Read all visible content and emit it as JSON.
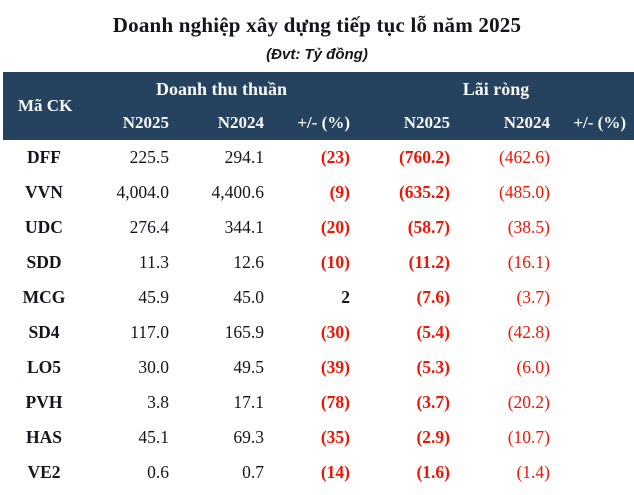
{
  "title": "Doanh nghiệp xây dựng tiếp tục lỗ năm 2025",
  "subtitle": "(Đvt: Tỷ đồng)",
  "colors": {
    "header_bg": "#25425f",
    "header_text": "#f7f9fb",
    "text": "#15151f",
    "negative": "#ee1505",
    "page_bg": "#ffffff"
  },
  "table": {
    "corner_header": "Mã CK",
    "groups": [
      {
        "label": "Doanh thu thuần"
      },
      {
        "label": "Lãi ròng"
      }
    ],
    "sub_headers": [
      "N2025",
      "N2024",
      "+/- (%)",
      "N2025",
      "N2024",
      "+/- (%)"
    ],
    "rows": [
      {
        "code": "DFF",
        "cells": [
          {
            "v": "225.5",
            "t": "num"
          },
          {
            "v": "294.1",
            "t": "num"
          },
          {
            "v": "(23)",
            "t": "neg-bold"
          },
          {
            "v": "(760.2)",
            "t": "neg-bold"
          },
          {
            "v": "(462.6)",
            "t": "neg"
          },
          {
            "v": "",
            "t": "empty"
          }
        ]
      },
      {
        "code": "VVN",
        "cells": [
          {
            "v": "4,004.0",
            "t": "num"
          },
          {
            "v": "4,400.6",
            "t": "num"
          },
          {
            "v": "(9)",
            "t": "neg-bold"
          },
          {
            "v": "(635.2)",
            "t": "neg-bold"
          },
          {
            "v": "(485.0)",
            "t": "neg"
          },
          {
            "v": "",
            "t": "empty"
          }
        ]
      },
      {
        "code": "UDC",
        "cells": [
          {
            "v": "276.4",
            "t": "num"
          },
          {
            "v": "344.1",
            "t": "num"
          },
          {
            "v": "(20)",
            "t": "neg-bold"
          },
          {
            "v": "(58.7)",
            "t": "neg-bold"
          },
          {
            "v": "(38.5)",
            "t": "neg"
          },
          {
            "v": "",
            "t": "empty"
          }
        ]
      },
      {
        "code": "SDD",
        "cells": [
          {
            "v": "11.3",
            "t": "num"
          },
          {
            "v": "12.6",
            "t": "num"
          },
          {
            "v": "(10)",
            "t": "neg-bold"
          },
          {
            "v": "(11.2)",
            "t": "neg-bold"
          },
          {
            "v": "(16.1)",
            "t": "neg"
          },
          {
            "v": "",
            "t": "empty"
          }
        ]
      },
      {
        "code": "MCG",
        "cells": [
          {
            "v": "45.9",
            "t": "num"
          },
          {
            "v": "45.0",
            "t": "num"
          },
          {
            "v": "2",
            "t": "num-bold"
          },
          {
            "v": "(7.6)",
            "t": "neg-bold"
          },
          {
            "v": "(3.7)",
            "t": "neg"
          },
          {
            "v": "",
            "t": "empty"
          }
        ]
      },
      {
        "code": "SD4",
        "cells": [
          {
            "v": "117.0",
            "t": "num"
          },
          {
            "v": "165.9",
            "t": "num"
          },
          {
            "v": "(30)",
            "t": "neg-bold"
          },
          {
            "v": "(5.4)",
            "t": "neg-bold"
          },
          {
            "v": "(42.8)",
            "t": "neg"
          },
          {
            "v": "",
            "t": "empty"
          }
        ]
      },
      {
        "code": "LO5",
        "cells": [
          {
            "v": "30.0",
            "t": "num"
          },
          {
            "v": "49.5",
            "t": "num"
          },
          {
            "v": "(39)",
            "t": "neg-bold"
          },
          {
            "v": "(5.3)",
            "t": "neg-bold"
          },
          {
            "v": "(6.0)",
            "t": "neg"
          },
          {
            "v": "",
            "t": "empty"
          }
        ]
      },
      {
        "code": "PVH",
        "cells": [
          {
            "v": "3.8",
            "t": "num"
          },
          {
            "v": "17.1",
            "t": "num"
          },
          {
            "v": "(78)",
            "t": "neg-bold"
          },
          {
            "v": "(3.7)",
            "t": "neg-bold"
          },
          {
            "v": "(20.2)",
            "t": "neg"
          },
          {
            "v": "",
            "t": "empty"
          }
        ]
      },
      {
        "code": "HAS",
        "cells": [
          {
            "v": "45.1",
            "t": "num"
          },
          {
            "v": "69.3",
            "t": "num"
          },
          {
            "v": "(35)",
            "t": "neg-bold"
          },
          {
            "v": "(2.9)",
            "t": "neg-bold"
          },
          {
            "v": "(10.7)",
            "t": "neg"
          },
          {
            "v": "",
            "t": "empty"
          }
        ]
      },
      {
        "code": "VE2",
        "cells": [
          {
            "v": "0.6",
            "t": "num"
          },
          {
            "v": "0.7",
            "t": "num"
          },
          {
            "v": "(14)",
            "t": "neg-bold"
          },
          {
            "v": "(1.6)",
            "t": "neg-bold"
          },
          {
            "v": "(1.4)",
            "t": "neg"
          },
          {
            "v": "",
            "t": "empty"
          }
        ]
      }
    ]
  },
  "chart_data": {
    "type": "table",
    "title": "Doanh nghiệp xây dựng tiếp tục lỗ năm 2025",
    "unit_note": "(Đvt: Tỷ đồng)",
    "column_groups": [
      "Doanh thu thuần",
      "Lãi ròng"
    ],
    "columns": [
      "Mã CK",
      "Doanh thu thuần N2025",
      "Doanh thu thuần N2024",
      "Doanh thu thuần +/- (%)",
      "Lãi ròng N2025",
      "Lãi ròng N2024",
      "Lãi ròng +/- (%)"
    ],
    "rows": [
      [
        "DFF",
        225.5,
        294.1,
        -23,
        -760.2,
        -462.6,
        null
      ],
      [
        "VVN",
        4004.0,
        4400.6,
        -9,
        -635.2,
        -485.0,
        null
      ],
      [
        "UDC",
        276.4,
        344.1,
        -20,
        -58.7,
        -38.5,
        null
      ],
      [
        "SDD",
        11.3,
        12.6,
        -10,
        -11.2,
        -16.1,
        null
      ],
      [
        "MCG",
        45.9,
        45.0,
        2,
        -7.6,
        -3.7,
        null
      ],
      [
        "SD4",
        117.0,
        165.9,
        -30,
        -5.4,
        -42.8,
        null
      ],
      [
        "LO5",
        30.0,
        49.5,
        -39,
        -5.3,
        -6.0,
        null
      ],
      [
        "PVH",
        3.8,
        17.1,
        -78,
        -3.7,
        -20.2,
        null
      ],
      [
        "HAS",
        45.1,
        69.3,
        -35,
        -2.9,
        -10.7,
        null
      ],
      [
        "VE2",
        0.6,
        0.7,
        -14,
        -1.6,
        -1.4,
        null
      ]
    ],
    "negative_format": "parentheses-red",
    "layout": {
      "header_rows": 2,
      "gridlines": false
    }
  }
}
